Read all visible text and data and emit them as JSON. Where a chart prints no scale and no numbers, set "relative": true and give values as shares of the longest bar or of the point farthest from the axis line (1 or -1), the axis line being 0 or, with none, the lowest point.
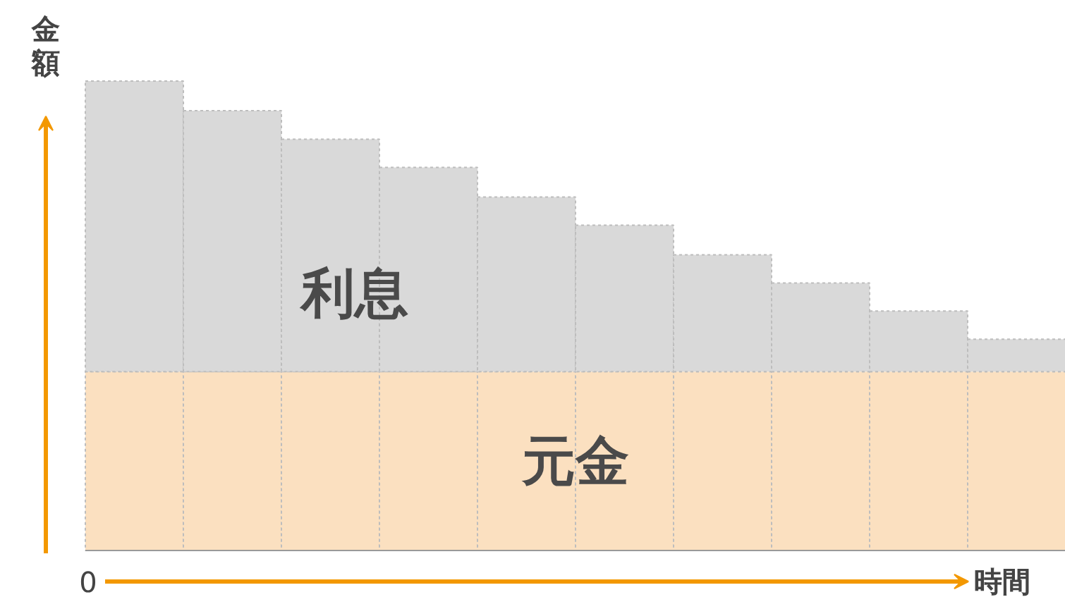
{
  "chart_data": {
    "type": "bar",
    "relative": true,
    "stacked": true,
    "xlabel": "時間",
    "ylabel": "金額",
    "annotations": [
      "0"
    ],
    "categories": [
      null,
      null,
      null,
      null,
      null,
      null,
      null,
      null,
      null,
      null
    ],
    "series": [
      {
        "name": "元金",
        "color": "#fbe0c0",
        "values": [
          0.381,
          0.381,
          0.381,
          0.381,
          0.381,
          0.381,
          0.381,
          0.381,
          0.381,
          0.381
        ]
      },
      {
        "name": "利息",
        "color": "#d9d9d9",
        "values": [
          0.619,
          0.556,
          0.495,
          0.435,
          0.372,
          0.312,
          0.249,
          0.189,
          0.129,
          0.069
        ]
      }
    ]
  }
}
